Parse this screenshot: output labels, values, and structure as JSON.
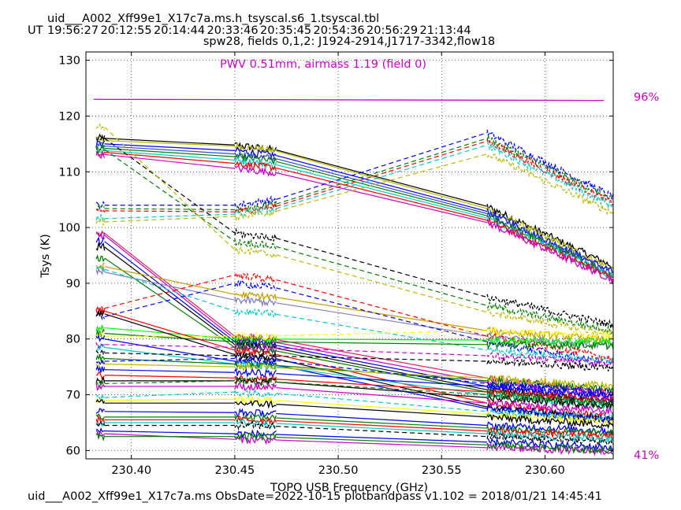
{
  "chart_data": {
    "type": "line",
    "title": "uid___A002_Xff99e1_X17c7a.ms.h_tsyscal.s6_1.tsyscal.tbl",
    "ut_prefix": "UT",
    "ut_times": [
      "19:56:27",
      "20:12:55",
      "20:14:44",
      "20:33:46",
      "20:35:45",
      "20:54:36",
      "20:56:29",
      "21:13:44"
    ],
    "subtitle": "spw28,  fields 0,1,2: J1924-2914,J1717-3342,flow18",
    "annotation": "PWV 0.51mm, airmass 1.19 (field 0)",
    "xlabel": "TOPO USB Frequency (GHz)",
    "ylabel": "Tsys (K)",
    "xlim": [
      230.378,
      230.633
    ],
    "ylim": [
      58.5,
      131.5
    ],
    "x_ticks": [
      "230.40",
      "230.45",
      "230.50",
      "230.55",
      "230.60"
    ],
    "x_tick_values": [
      230.4,
      230.45,
      230.5,
      230.55,
      230.6
    ],
    "y_ticks": [
      "60",
      "70",
      "80",
      "90",
      "100",
      "110",
      "120",
      "130"
    ],
    "y_tick_values": [
      60,
      70,
      80,
      90,
      100,
      110,
      120,
      130
    ],
    "grid": true,
    "right_labels": {
      "top": "96%",
      "bottom": "41%"
    },
    "right_label_color": "#cc00cc",
    "transmission": {
      "x": [
        230.378,
        230.633
      ],
      "y": [
        123.0,
        122.8
      ],
      "color": "#cc00cc"
    },
    "segments": [
      {
        "start": 230.383,
        "end": 230.387
      },
      {
        "start": 230.45,
        "end": 230.47
      },
      {
        "start": 230.572,
        "end": 230.633
      }
    ],
    "footer": "uid___A002_Xff99e1_X17c7a.ms  ObsDate=2022-10-15   plotbandpass v1.102 = 2018/01/21 14:45:41",
    "series_colors": [
      "#000000",
      "#0000ff",
      "#ff0000",
      "#008000",
      "#00cccc",
      "#cc00cc",
      "#bbbb00",
      "#00ff00",
      "#ffff00",
      "#ff7f00",
      "#8080c0",
      "#334ccc",
      "#e0205a",
      "#c8a000"
    ],
    "series": [
      {
        "solid": true,
        "color": "#000000",
        "values": [
          116.0,
          114.8,
          103.8,
          93.0
        ]
      },
      {
        "solid": true,
        "color": "#bbbb00",
        "values": [
          115.6,
          114.6,
          103.4,
          92.5
        ]
      },
      {
        "solid": true,
        "color": "#0000ff",
        "values": [
          115.0,
          113.8,
          102.9,
          92.0
        ]
      },
      {
        "solid": true,
        "color": "#334ccc",
        "values": [
          114.6,
          113.2,
          102.5,
          91.7
        ]
      },
      {
        "solid": true,
        "color": "#008000",
        "values": [
          114.2,
          112.7,
          102.1,
          91.4
        ]
      },
      {
        "solid": true,
        "color": "#00cccc",
        "values": [
          113.8,
          112.1,
          101.7,
          91.1
        ]
      },
      {
        "solid": true,
        "color": "#ff0000",
        "values": [
          113.5,
          111.5,
          101.3,
          90.9
        ]
      },
      {
        "solid": true,
        "color": "#cc00cc",
        "values": [
          113.1,
          110.6,
          100.9,
          90.6
        ]
      },
      {
        "solid": false,
        "color": "#0000ff",
        "values": [
          104.0,
          104.0,
          117.0,
          105.5
        ]
      },
      {
        "solid": false,
        "color": "#008000",
        "values": [
          103.4,
          103.2,
          116.0,
          104.9
        ]
      },
      {
        "solid": false,
        "color": "#ff0000",
        "values": [
          103.0,
          102.8,
          115.5,
          104.4
        ]
      },
      {
        "solid": false,
        "color": "#00cccc",
        "values": [
          101.6,
          102.4,
          114.8,
          103.8
        ]
      },
      {
        "solid": false,
        "color": "#bbbb00",
        "values": [
          101.0,
          102.0,
          113.2,
          102.6
        ]
      },
      {
        "solid": true,
        "color": "#e0205a",
        "values": [
          99.0,
          80.5,
          73.0,
          70.5
        ]
      },
      {
        "solid": true,
        "color": "#cc00cc",
        "values": [
          98.6,
          80.0,
          72.2,
          69.8
        ]
      },
      {
        "solid": true,
        "color": "#0000ff",
        "values": [
          97.5,
          79.5,
          71.5,
          69.0
        ]
      },
      {
        "solid": true,
        "color": "#000000",
        "values": [
          96.5,
          79.0,
          70.9,
          68.4
        ]
      },
      {
        "solid": true,
        "color": "#008000",
        "values": [
          94.5,
          78.5,
          70.5,
          68.0
        ]
      },
      {
        "solid": true,
        "color": "#c8a000",
        "values": [
          93.0,
          88.0,
          81.5,
          79.8
        ]
      },
      {
        "solid": true,
        "color": "#8080c0",
        "values": [
          92.0,
          87.0,
          80.5,
          78.8
        ]
      },
      {
        "solid": false,
        "color": "#000000",
        "values": [
          116.0,
          99.0,
          87.5,
          82.5
        ]
      },
      {
        "solid": false,
        "color": "#008000",
        "values": [
          114.0,
          97.5,
          86.0,
          81.5
        ]
      },
      {
        "solid": false,
        "color": "#bbbb00",
        "values": [
          118.0,
          96.0,
          84.8,
          80.8
        ]
      },
      {
        "solid": false,
        "color": "#ff0000",
        "values": [
          85.5,
          91.5,
          80.5,
          76.5
        ]
      },
      {
        "solid": false,
        "color": "#0000ff",
        "values": [
          84.0,
          90.0,
          79.5,
          75.5
        ]
      },
      {
        "solid": false,
        "color": "#00cccc",
        "values": [
          92.5,
          85.0,
          78.0,
          76.0
        ]
      },
      {
        "solid": true,
        "color": "#00ff00",
        "values": [
          82.0,
          80.0,
          79.8,
          79.5
        ]
      },
      {
        "solid": true,
        "color": "#008000",
        "values": [
          81.0,
          79.5,
          79.0,
          78.8
        ]
      },
      {
        "solid": false,
        "color": "#ffff00",
        "values": [
          80.5,
          80.5,
          81.5,
          80.5
        ]
      },
      {
        "solid": true,
        "color": "#ff0000",
        "values": [
          85.0,
          78.0,
          68.5,
          66.0
        ]
      },
      {
        "solid": true,
        "color": "#000000",
        "values": [
          84.5,
          77.2,
          67.8,
          65.5
        ]
      },
      {
        "solid": true,
        "color": "#0000ff",
        "values": [
          80.0,
          76.0,
          67.5,
          65.5
        ]
      },
      {
        "solid": true,
        "color": "#00cccc",
        "values": [
          78.5,
          75.5,
          70.0,
          68.0
        ]
      },
      {
        "solid": false,
        "color": "#cc00cc",
        "values": [
          79.0,
          78.5,
          77.0,
          75.5
        ]
      },
      {
        "solid": false,
        "color": "#000000",
        "values": [
          77.5,
          77.0,
          76.0,
          74.8
        ]
      },
      {
        "solid": true,
        "color": "#008000",
        "values": [
          76.5,
          75.5,
          72.5,
          71.0
        ]
      },
      {
        "solid": true,
        "color": "#bbbb00",
        "values": [
          75.5,
          75.0,
          73.0,
          71.5
        ]
      },
      {
        "solid": true,
        "color": "#0000ff",
        "values": [
          74.5,
          74.0,
          71.5,
          70.0
        ]
      },
      {
        "solid": false,
        "color": "#0000ff",
        "values": [
          76.0,
          76.5,
          72.0,
          70.5
        ]
      },
      {
        "solid": true,
        "color": "#ff0000",
        "values": [
          73.5,
          73.0,
          70.5,
          69.0
        ]
      },
      {
        "solid": true,
        "color": "#000000",
        "values": [
          72.5,
          72.5,
          69.5,
          68.0
        ]
      },
      {
        "solid": false,
        "color": "#008000",
        "values": [
          72.0,
          72.5,
          70.0,
          68.5
        ]
      },
      {
        "solid": true,
        "color": "#cc00cc",
        "values": [
          71.5,
          71.5,
          68.5,
          67.0
        ]
      },
      {
        "solid": true,
        "color": "#ffff00",
        "values": [
          69.0,
          69.2,
          66.5,
          65.0
        ]
      },
      {
        "solid": true,
        "color": "#000000",
        "values": [
          68.5,
          68.5,
          66.0,
          64.5
        ]
      },
      {
        "solid": false,
        "color": "#00cccc",
        "values": [
          69.5,
          70.5,
          67.0,
          66.0
        ]
      },
      {
        "solid": true,
        "color": "#0000ff",
        "values": [
          67.0,
          66.8,
          64.5,
          63.5
        ]
      },
      {
        "solid": true,
        "color": "#008000",
        "values": [
          66.0,
          66.0,
          64.0,
          63.0
        ]
      },
      {
        "solid": true,
        "color": "#ff0000",
        "values": [
          65.5,
          65.5,
          63.5,
          62.5
        ]
      },
      {
        "solid": true,
        "color": "#00cccc",
        "values": [
          65.0,
          65.0,
          63.0,
          62.0
        ]
      },
      {
        "solid": false,
        "color": "#000000",
        "values": [
          64.5,
          64.5,
          62.5,
          61.5
        ]
      },
      {
        "solid": true,
        "color": "#0000ff",
        "values": [
          63.5,
          63.0,
          61.5,
          60.5
        ]
      },
      {
        "solid": true,
        "color": "#cc00cc",
        "values": [
          63.0,
          62.0,
          60.5,
          59.8
        ]
      },
      {
        "solid": true,
        "color": "#008000",
        "values": [
          62.5,
          62.5,
          61.0,
          60.0
        ]
      }
    ]
  }
}
